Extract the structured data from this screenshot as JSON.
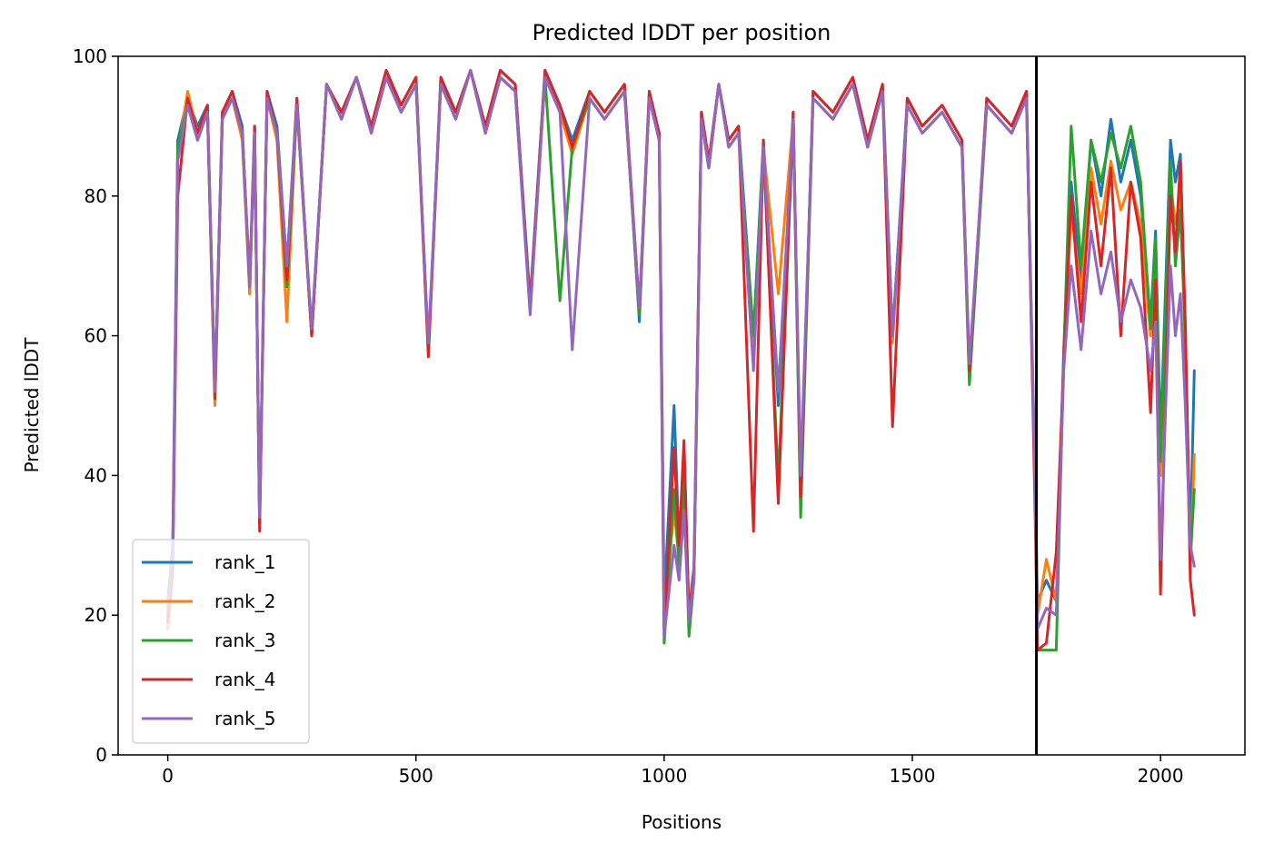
{
  "chart_data": {
    "type": "line",
    "title": "Predicted lDDT per position",
    "xlabel": "Positions",
    "ylabel": "Predicted lDDT",
    "xlim": [
      -100,
      2170
    ],
    "ylim": [
      0,
      100
    ],
    "xticks": [
      0,
      500,
      1000,
      1500,
      2000
    ],
    "yticks": [
      0,
      20,
      40,
      60,
      80,
      100
    ],
    "grid": false,
    "legend_position": "lower-left",
    "chain_break": 1750,
    "chain_break_color": "#000000",
    "series": [
      {
        "name": "rank_1",
        "color": "#1f77b4",
        "x": [
          0,
          10,
          20,
          40,
          60,
          80,
          95,
          110,
          130,
          150,
          165,
          175,
          185,
          200,
          220,
          240,
          260,
          290,
          320,
          350,
          380,
          410,
          440,
          470,
          500,
          525,
          550,
          580,
          610,
          640,
          670,
          700,
          730,
          760,
          790,
          815,
          850,
          880,
          920,
          950,
          970,
          990,
          1000,
          1020,
          1030,
          1040,
          1050,
          1060,
          1075,
          1090,
          1110,
          1130,
          1150,
          1180,
          1200,
          1230,
          1260,
          1275,
          1300,
          1340,
          1380,
          1410,
          1440,
          1460,
          1490,
          1520,
          1560,
          1600,
          1615,
          1650,
          1700,
          1730,
          1748,
          1752,
          1770,
          1790,
          1805,
          1820,
          1840,
          1860,
          1880,
          1900,
          1920,
          1940,
          1960,
          1980,
          1990,
          2000,
          2020,
          2030,
          2040,
          2050,
          2060,
          2068
        ],
        "values": [
          22,
          30,
          88,
          94,
          90,
          93,
          52,
          92,
          95,
          90,
          66,
          90,
          34,
          95,
          90,
          70,
          94,
          60,
          96,
          92,
          97,
          90,
          98,
          93,
          97,
          58,
          97,
          92,
          98,
          90,
          98,
          96,
          65,
          98,
          93,
          88,
          95,
          92,
          96,
          62,
          95,
          89,
          22,
          50,
          30,
          44,
          20,
          27,
          92,
          85,
          96,
          88,
          90,
          60,
          88,
          50,
          92,
          36,
          95,
          92,
          97,
          88,
          96,
          60,
          94,
          90,
          93,
          88,
          54,
          94,
          90,
          95,
          37,
          22,
          25,
          22,
          58,
          82,
          68,
          88,
          80,
          91,
          82,
          88,
          80,
          62,
          75,
          45,
          88,
          82,
          86,
          60,
          30,
          55
        ]
      },
      {
        "name": "rank_2",
        "color": "#ff7f0e",
        "x": [
          0,
          10,
          20,
          40,
          60,
          80,
          95,
          110,
          130,
          150,
          165,
          175,
          185,
          200,
          220,
          240,
          260,
          290,
          320,
          350,
          380,
          410,
          440,
          470,
          500,
          525,
          550,
          580,
          610,
          640,
          670,
          700,
          730,
          760,
          790,
          815,
          850,
          880,
          920,
          950,
          970,
          990,
          1000,
          1020,
          1030,
          1040,
          1050,
          1060,
          1075,
          1090,
          1110,
          1130,
          1150,
          1180,
          1200,
          1230,
          1260,
          1275,
          1300,
          1340,
          1380,
          1410,
          1440,
          1460,
          1490,
          1520,
          1560,
          1600,
          1615,
          1650,
          1700,
          1730,
          1748,
          1752,
          1770,
          1790,
          1805,
          1820,
          1840,
          1860,
          1880,
          1900,
          1920,
          1940,
          1960,
          1980,
          1990,
          2000,
          2020,
          2030,
          2040,
          2050,
          2060,
          2068
        ],
        "values": [
          18,
          26,
          86,
          95,
          89,
          92,
          50,
          91,
          94,
          88,
          66,
          89,
          33,
          94,
          88,
          62,
          93,
          60,
          96,
          91,
          97,
          89,
          97,
          92,
          96,
          57,
          96,
          91,
          98,
          89,
          97,
          95,
          64,
          97,
          92,
          86,
          94,
          91,
          95,
          63,
          94,
          88,
          20,
          35,
          28,
          40,
          18,
          26,
          91,
          84,
          96,
          87,
          89,
          59,
          87,
          66,
          91,
          38,
          94,
          91,
          96,
          87,
          95,
          59,
          93,
          89,
          92,
          87,
          54,
          93,
          89,
          94,
          35,
          20,
          28,
          22,
          56,
          78,
          66,
          84,
          76,
          85,
          78,
          82,
          76,
          60,
          70,
          40,
          82,
          76,
          80,
          58,
          26,
          43
        ]
      },
      {
        "name": "rank_3",
        "color": "#2ca02c",
        "x": [
          0,
          10,
          20,
          40,
          60,
          80,
          95,
          110,
          130,
          150,
          165,
          175,
          185,
          200,
          220,
          240,
          260,
          290,
          320,
          350,
          380,
          410,
          440,
          470,
          500,
          525,
          550,
          580,
          610,
          640,
          670,
          700,
          730,
          760,
          790,
          815,
          850,
          880,
          920,
          950,
          970,
          990,
          1000,
          1020,
          1030,
          1040,
          1050,
          1060,
          1075,
          1090,
          1110,
          1130,
          1150,
          1180,
          1200,
          1230,
          1260,
          1275,
          1300,
          1340,
          1380,
          1410,
          1440,
          1460,
          1490,
          1520,
          1560,
          1600,
          1615,
          1650,
          1700,
          1730,
          1748,
          1752,
          1770,
          1790,
          1805,
          1820,
          1840,
          1860,
          1880,
          1900,
          1920,
          1940,
          1960,
          1980,
          1990,
          2000,
          2020,
          2030,
          2040,
          2050,
          2060,
          2068
        ],
        "values": [
          20,
          28,
          87,
          93,
          88,
          92,
          51,
          91,
          94,
          89,
          67,
          89,
          33,
          94,
          89,
          67,
          93,
          60,
          96,
          91,
          97,
          89,
          97,
          92,
          96,
          58,
          96,
          91,
          98,
          89,
          97,
          95,
          64,
          97,
          65,
          87,
          94,
          91,
          95,
          63,
          94,
          88,
          16,
          38,
          27,
          40,
          17,
          25,
          91,
          84,
          96,
          87,
          89,
          60,
          87,
          39,
          91,
          34,
          94,
          91,
          96,
          87,
          95,
          60,
          93,
          89,
          92,
          87,
          53,
          93,
          89,
          94,
          35,
          15,
          15,
          15,
          57,
          90,
          70,
          88,
          82,
          89,
          84,
          90,
          82,
          61,
          74,
          42,
          85,
          70,
          78,
          60,
          28,
          38
        ]
      },
      {
        "name": "rank_4",
        "color": "#d62728",
        "x": [
          0,
          10,
          20,
          40,
          60,
          80,
          95,
          110,
          130,
          150,
          165,
          175,
          185,
          200,
          220,
          240,
          260,
          290,
          320,
          350,
          380,
          410,
          440,
          470,
          500,
          525,
          550,
          580,
          610,
          640,
          670,
          700,
          730,
          760,
          790,
          815,
          850,
          880,
          920,
          950,
          970,
          990,
          1000,
          1020,
          1030,
          1040,
          1050,
          1060,
          1075,
          1090,
          1110,
          1130,
          1150,
          1180,
          1200,
          1230,
          1260,
          1275,
          1300,
          1340,
          1380,
          1410,
          1440,
          1460,
          1490,
          1520,
          1560,
          1600,
          1615,
          1650,
          1700,
          1730,
          1748,
          1752,
          1770,
          1790,
          1805,
          1820,
          1840,
          1860,
          1880,
          1900,
          1920,
          1940,
          1960,
          1980,
          1990,
          2000,
          2020,
          2030,
          2040,
          2050,
          2060,
          2068
        ],
        "values": [
          19,
          27,
          80,
          94,
          89,
          93,
          51,
          92,
          95,
          89,
          68,
          90,
          32,
          95,
          89,
          68,
          94,
          60,
          96,
          92,
          97,
          90,
          98,
          93,
          97,
          57,
          97,
          92,
          98,
          90,
          98,
          96,
          64,
          98,
          93,
          87,
          95,
          92,
          96,
          64,
          95,
          89,
          18,
          44,
          30,
          45,
          20,
          26,
          92,
          85,
          96,
          88,
          90,
          32,
          88,
          36,
          92,
          37,
          95,
          92,
          97,
          88,
          96,
          47,
          94,
          90,
          93,
          88,
          55,
          94,
          90,
          95,
          32,
          15,
          16,
          29,
          56,
          80,
          62,
          82,
          70,
          84,
          60,
          82,
          74,
          49,
          68,
          23,
          80,
          72,
          85,
          62,
          25,
          20
        ]
      },
      {
        "name": "rank_5",
        "color": "#9467bd",
        "x": [
          0,
          10,
          20,
          40,
          60,
          80,
          95,
          110,
          130,
          150,
          165,
          175,
          185,
          200,
          220,
          240,
          260,
          290,
          320,
          350,
          380,
          410,
          440,
          470,
          500,
          525,
          550,
          580,
          610,
          640,
          670,
          700,
          730,
          760,
          790,
          815,
          850,
          880,
          920,
          950,
          970,
          990,
          1000,
          1020,
          1030,
          1040,
          1050,
          1060,
          1075,
          1090,
          1110,
          1130,
          1150,
          1180,
          1200,
          1230,
          1260,
          1275,
          1300,
          1340,
          1380,
          1410,
          1440,
          1460,
          1490,
          1520,
          1560,
          1600,
          1615,
          1650,
          1700,
          1730,
          1748,
          1752,
          1770,
          1790,
          1805,
          1820,
          1840,
          1860,
          1880,
          1900,
          1920,
          1940,
          1960,
          1980,
          1990,
          2000,
          2020,
          2030,
          2040,
          2050,
          2060,
          2068
        ],
        "values": [
          21,
          29,
          85,
          93,
          88,
          92,
          52,
          91,
          94,
          89,
          67,
          89,
          34,
          94,
          89,
          70,
          93,
          61,
          96,
          91,
          97,
          89,
          97,
          92,
          96,
          59,
          96,
          91,
          98,
          89,
          97,
          95,
          63,
          97,
          92,
          58,
          94,
          91,
          95,
          64,
          94,
          88,
          17,
          30,
          25,
          35,
          19,
          25,
          91,
          84,
          96,
          87,
          89,
          55,
          87,
          52,
          91,
          40,
          94,
          91,
          96,
          87,
          95,
          60,
          93,
          89,
          92,
          87,
          56,
          93,
          89,
          94,
          36,
          18,
          21,
          20,
          55,
          70,
          58,
          75,
          66,
          72,
          62,
          68,
          64,
          55,
          62,
          28,
          70,
          60,
          66,
          50,
          30,
          27
        ]
      }
    ]
  }
}
